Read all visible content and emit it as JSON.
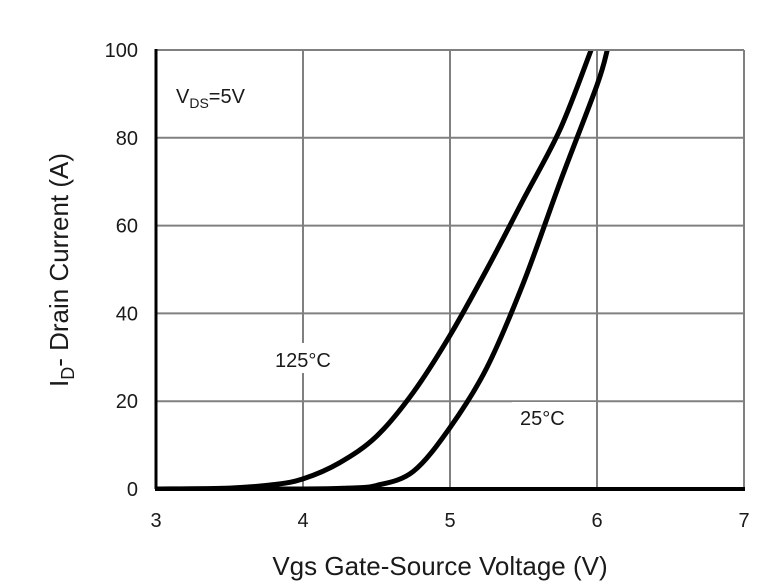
{
  "chart_data": {
    "type": "line",
    "title": "",
    "xlabel": "Vgs Gate-Source Voltage (V)",
    "ylabel_main": "I",
    "ylabel_sub": "D",
    "ylabel_rest": "- Drain Current (A)",
    "xlim": [
      3,
      7
    ],
    "ylim": [
      0,
      100
    ],
    "xticks": [
      3,
      4,
      5,
      6,
      7
    ],
    "yticks": [
      0,
      20,
      40,
      60,
      80,
      100
    ],
    "grid": true,
    "annotation": {
      "main": "V",
      "sub": "DS",
      "rest": "=5V"
    },
    "series": [
      {
        "name": "125°C",
        "x": [
          3.0,
          3.5,
          3.8,
          4.0,
          4.25,
          4.5,
          4.75,
          5.0,
          5.25,
          5.5,
          5.75,
          5.96
        ],
        "y": [
          0,
          0.2,
          1,
          2.3,
          6,
          12,
          22,
          35,
          50,
          66,
          82,
          100
        ]
      },
      {
        "name": "25°C",
        "x": [
          3.0,
          4.0,
          4.3,
          4.5,
          4.75,
          5.0,
          5.25,
          5.5,
          5.75,
          6.0,
          6.07
        ],
        "y": [
          0,
          0,
          0.2,
          0.8,
          4,
          14,
          27.6,
          47,
          70,
          92,
          100
        ]
      }
    ],
    "labels": [
      "125°C",
      "25°C"
    ],
    "colors": {
      "line": "#000000",
      "grid": "#808080"
    }
  }
}
